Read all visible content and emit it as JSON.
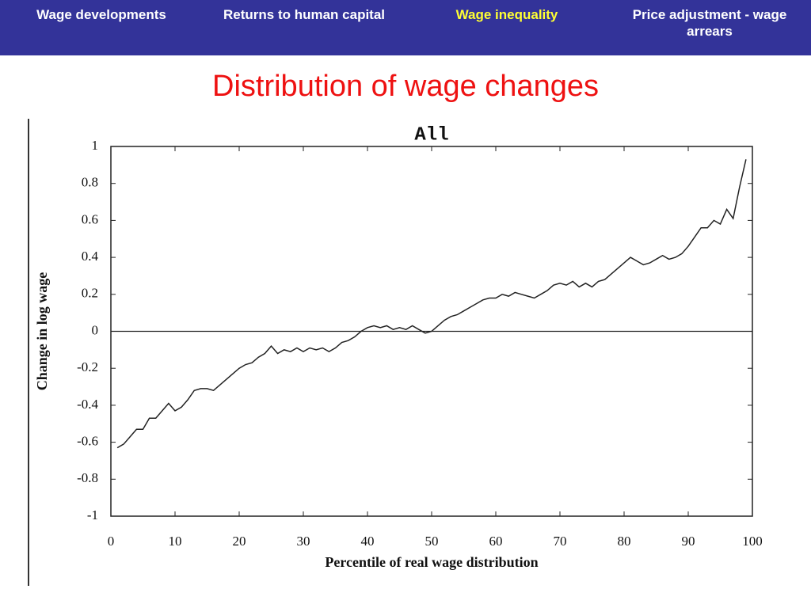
{
  "nav": [
    {
      "label": "Wage developments",
      "active": false
    },
    {
      "label": "Returns to human capital",
      "active": false
    },
    {
      "label": "Wage inequality",
      "active": true
    },
    {
      "label": "Price adjustment - wage arrears",
      "active": false
    }
  ],
  "heading": "Distribution of wage changes",
  "chart_data": {
    "type": "line",
    "title": "All",
    "xlabel": "Percentile of real wage distribution",
    "ylabel": "Change in log wage",
    "xlim": [
      0,
      100
    ],
    "xticks": [
      0,
      10,
      20,
      30,
      40,
      50,
      60,
      70,
      80,
      90,
      100
    ],
    "ylim": [
      -1,
      1
    ],
    "yticks": [
      -1,
      -0.8,
      -0.6,
      -0.4,
      -0.2,
      0,
      0.2,
      0.4,
      0.6,
      0.8,
      1
    ],
    "color": "#222222",
    "x": [
      1,
      2,
      3,
      4,
      5,
      6,
      7,
      8,
      9,
      10,
      11,
      12,
      13,
      14,
      15,
      16,
      17,
      18,
      19,
      20,
      21,
      22,
      23,
      24,
      25,
      26,
      27,
      28,
      29,
      30,
      31,
      32,
      33,
      34,
      35,
      36,
      37,
      38,
      39,
      40,
      41,
      42,
      43,
      44,
      45,
      46,
      47,
      48,
      49,
      50,
      51,
      52,
      53,
      54,
      55,
      56,
      57,
      58,
      59,
      60,
      61,
      62,
      63,
      64,
      65,
      66,
      67,
      68,
      69,
      70,
      71,
      72,
      73,
      74,
      75,
      76,
      77,
      78,
      79,
      80,
      81,
      82,
      83,
      84,
      85,
      86,
      87,
      88,
      89,
      90,
      91,
      92,
      93,
      94,
      95,
      96,
      97,
      98,
      99
    ],
    "values": [
      -0.63,
      -0.61,
      -0.57,
      -0.53,
      -0.53,
      -0.47,
      -0.47,
      -0.43,
      -0.39,
      -0.43,
      -0.41,
      -0.37,
      -0.32,
      -0.31,
      -0.31,
      -0.32,
      -0.29,
      -0.26,
      -0.23,
      -0.2,
      -0.18,
      -0.17,
      -0.14,
      -0.12,
      -0.08,
      -0.12,
      -0.1,
      -0.11,
      -0.09,
      -0.11,
      -0.09,
      -0.1,
      -0.09,
      -0.11,
      -0.09,
      -0.06,
      -0.05,
      -0.03,
      0,
      0.02,
      0.03,
      0.02,
      0.03,
      0.01,
      0.02,
      0.01,
      0.03,
      0.01,
      -0.01,
      0,
      0.03,
      0.06,
      0.08,
      0.09,
      0.11,
      0.13,
      0.15,
      0.17,
      0.18,
      0.18,
      0.2,
      0.19,
      0.21,
      0.2,
      0.19,
      0.18,
      0.2,
      0.22,
      0.25,
      0.26,
      0.25,
      0.27,
      0.24,
      0.26,
      0.24,
      0.27,
      0.28,
      0.31,
      0.34,
      0.37,
      0.4,
      0.38,
      0.36,
      0.37,
      0.39,
      0.41,
      0.39,
      0.4,
      0.42,
      0.46,
      0.51,
      0.56,
      0.56,
      0.6,
      0.58,
      0.66,
      0.61,
      0.78,
      0.93
    ]
  }
}
